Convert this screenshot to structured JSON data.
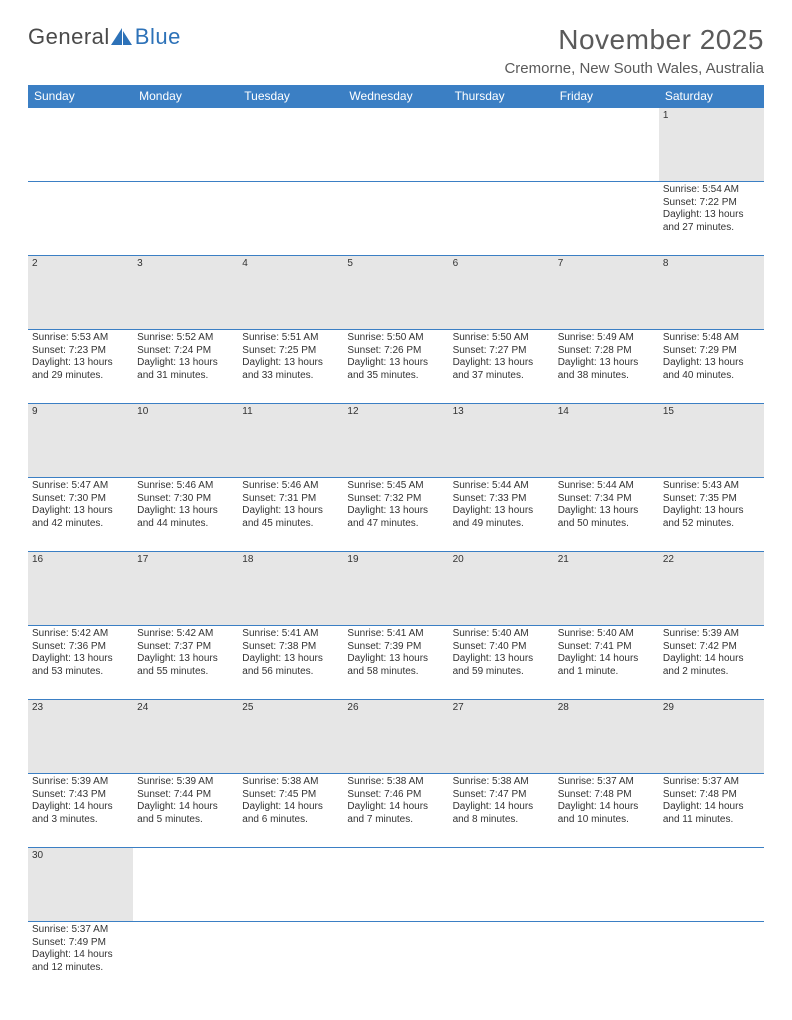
{
  "logo": {
    "text1": "General",
    "text2": "Blue"
  },
  "title": "November 2025",
  "subtitle": "Cremorne, New South Wales, Australia",
  "colors": {
    "header_bg": "#3b7fc4",
    "header_text": "#ffffff",
    "daynum_bg": "#e6e6e6",
    "daynum_text": "#555555",
    "rule": "#3b7fc4",
    "body_text": "#333333",
    "title_text": "#5a5a5a",
    "logo_gray": "#4a4a4a",
    "logo_blue": "#2d72b8"
  },
  "weekdays": [
    "Sunday",
    "Monday",
    "Tuesday",
    "Wednesday",
    "Thursday",
    "Friday",
    "Saturday"
  ],
  "weeks": [
    [
      null,
      null,
      null,
      null,
      null,
      null,
      {
        "n": "1",
        "sr": "Sunrise: 5:54 AM",
        "ss": "Sunset: 7:22 PM",
        "dl": "Daylight: 13 hours and 27 minutes."
      }
    ],
    [
      {
        "n": "2",
        "sr": "Sunrise: 5:53 AM",
        "ss": "Sunset: 7:23 PM",
        "dl": "Daylight: 13 hours and 29 minutes."
      },
      {
        "n": "3",
        "sr": "Sunrise: 5:52 AM",
        "ss": "Sunset: 7:24 PM",
        "dl": "Daylight: 13 hours and 31 minutes."
      },
      {
        "n": "4",
        "sr": "Sunrise: 5:51 AM",
        "ss": "Sunset: 7:25 PM",
        "dl": "Daylight: 13 hours and 33 minutes."
      },
      {
        "n": "5",
        "sr": "Sunrise: 5:50 AM",
        "ss": "Sunset: 7:26 PM",
        "dl": "Daylight: 13 hours and 35 minutes."
      },
      {
        "n": "6",
        "sr": "Sunrise: 5:50 AM",
        "ss": "Sunset: 7:27 PM",
        "dl": "Daylight: 13 hours and 37 minutes."
      },
      {
        "n": "7",
        "sr": "Sunrise: 5:49 AM",
        "ss": "Sunset: 7:28 PM",
        "dl": "Daylight: 13 hours and 38 minutes."
      },
      {
        "n": "8",
        "sr": "Sunrise: 5:48 AM",
        "ss": "Sunset: 7:29 PM",
        "dl": "Daylight: 13 hours and 40 minutes."
      }
    ],
    [
      {
        "n": "9",
        "sr": "Sunrise: 5:47 AM",
        "ss": "Sunset: 7:30 PM",
        "dl": "Daylight: 13 hours and 42 minutes."
      },
      {
        "n": "10",
        "sr": "Sunrise: 5:46 AM",
        "ss": "Sunset: 7:30 PM",
        "dl": "Daylight: 13 hours and 44 minutes."
      },
      {
        "n": "11",
        "sr": "Sunrise: 5:46 AM",
        "ss": "Sunset: 7:31 PM",
        "dl": "Daylight: 13 hours and 45 minutes."
      },
      {
        "n": "12",
        "sr": "Sunrise: 5:45 AM",
        "ss": "Sunset: 7:32 PM",
        "dl": "Daylight: 13 hours and 47 minutes."
      },
      {
        "n": "13",
        "sr": "Sunrise: 5:44 AM",
        "ss": "Sunset: 7:33 PM",
        "dl": "Daylight: 13 hours and 49 minutes."
      },
      {
        "n": "14",
        "sr": "Sunrise: 5:44 AM",
        "ss": "Sunset: 7:34 PM",
        "dl": "Daylight: 13 hours and 50 minutes."
      },
      {
        "n": "15",
        "sr": "Sunrise: 5:43 AM",
        "ss": "Sunset: 7:35 PM",
        "dl": "Daylight: 13 hours and 52 minutes."
      }
    ],
    [
      {
        "n": "16",
        "sr": "Sunrise: 5:42 AM",
        "ss": "Sunset: 7:36 PM",
        "dl": "Daylight: 13 hours and 53 minutes."
      },
      {
        "n": "17",
        "sr": "Sunrise: 5:42 AM",
        "ss": "Sunset: 7:37 PM",
        "dl": "Daylight: 13 hours and 55 minutes."
      },
      {
        "n": "18",
        "sr": "Sunrise: 5:41 AM",
        "ss": "Sunset: 7:38 PM",
        "dl": "Daylight: 13 hours and 56 minutes."
      },
      {
        "n": "19",
        "sr": "Sunrise: 5:41 AM",
        "ss": "Sunset: 7:39 PM",
        "dl": "Daylight: 13 hours and 58 minutes."
      },
      {
        "n": "20",
        "sr": "Sunrise: 5:40 AM",
        "ss": "Sunset: 7:40 PM",
        "dl": "Daylight: 13 hours and 59 minutes."
      },
      {
        "n": "21",
        "sr": "Sunrise: 5:40 AM",
        "ss": "Sunset: 7:41 PM",
        "dl": "Daylight: 14 hours and 1 minute."
      },
      {
        "n": "22",
        "sr": "Sunrise: 5:39 AM",
        "ss": "Sunset: 7:42 PM",
        "dl": "Daylight: 14 hours and 2 minutes."
      }
    ],
    [
      {
        "n": "23",
        "sr": "Sunrise: 5:39 AM",
        "ss": "Sunset: 7:43 PM",
        "dl": "Daylight: 14 hours and 3 minutes."
      },
      {
        "n": "24",
        "sr": "Sunrise: 5:39 AM",
        "ss": "Sunset: 7:44 PM",
        "dl": "Daylight: 14 hours and 5 minutes."
      },
      {
        "n": "25",
        "sr": "Sunrise: 5:38 AM",
        "ss": "Sunset: 7:45 PM",
        "dl": "Daylight: 14 hours and 6 minutes."
      },
      {
        "n": "26",
        "sr": "Sunrise: 5:38 AM",
        "ss": "Sunset: 7:46 PM",
        "dl": "Daylight: 14 hours and 7 minutes."
      },
      {
        "n": "27",
        "sr": "Sunrise: 5:38 AM",
        "ss": "Sunset: 7:47 PM",
        "dl": "Daylight: 14 hours and 8 minutes."
      },
      {
        "n": "28",
        "sr": "Sunrise: 5:37 AM",
        "ss": "Sunset: 7:48 PM",
        "dl": "Daylight: 14 hours and 10 minutes."
      },
      {
        "n": "29",
        "sr": "Sunrise: 5:37 AM",
        "ss": "Sunset: 7:48 PM",
        "dl": "Daylight: 14 hours and 11 minutes."
      }
    ],
    [
      {
        "n": "30",
        "sr": "Sunrise: 5:37 AM",
        "ss": "Sunset: 7:49 PM",
        "dl": "Daylight: 14 hours and 12 minutes."
      },
      null,
      null,
      null,
      null,
      null,
      null
    ]
  ]
}
